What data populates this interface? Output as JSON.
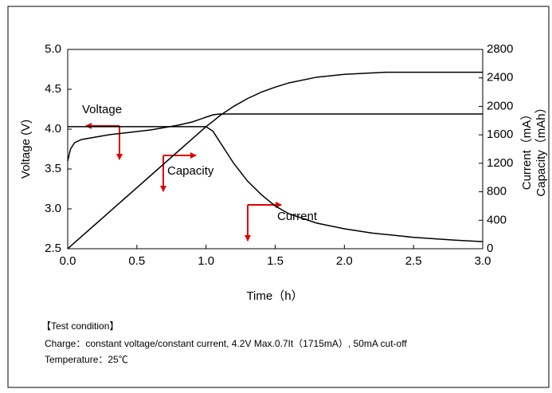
{
  "chart_data": {
    "type": "line",
    "x": [
      0,
      0.02,
      0.05,
      0.1,
      0.2,
      0.3,
      0.4,
      0.5,
      0.6,
      0.7,
      0.8,
      0.9,
      1.0,
      1.05,
      1.1,
      1.2,
      1.3,
      1.4,
      1.5,
      1.6,
      1.8,
      2.0,
      2.2,
      2.3,
      2.5,
      2.8,
      3.0
    ],
    "series": [
      {
        "name": "Voltage",
        "color": "#000000",
        "values": [
          3.6,
          3.75,
          3.83,
          3.87,
          3.9,
          3.93,
          3.95,
          3.97,
          3.99,
          4.02,
          4.05,
          4.09,
          4.15,
          4.18,
          4.19,
          4.19,
          4.19,
          4.19,
          4.19,
          4.19,
          4.19,
          4.19,
          4.19,
          4.19,
          4.19,
          4.19,
          4.19
        ]
      },
      {
        "name": "Capacity",
        "color": "#000000",
        "axis": "y2",
        "values": [
          0,
          34,
          86,
          172,
          343,
          515,
          686,
          858,
          1029,
          1201,
          1372,
          1544,
          1715,
          1790,
          1870,
          2000,
          2110,
          2200,
          2270,
          2330,
          2410,
          2450,
          2470,
          2480,
          2480,
          2480,
          2480
        ]
      },
      {
        "name": "Current",
        "color": "#000000",
        "axis": "y2",
        "values": [
          1715,
          1715,
          1715,
          1715,
          1715,
          1715,
          1715,
          1715,
          1715,
          1715,
          1715,
          1715,
          1715,
          1650,
          1500,
          1200,
          950,
          760,
          600,
          490,
          360,
          280,
          220,
          200,
          160,
          120,
          100
        ]
      }
    ],
    "xlabel": "Time（h）",
    "ylabel": "Voltage (V)",
    "y2labels": [
      "Current（mA）",
      "Capacity（mAh）"
    ],
    "xlim": [
      0,
      3
    ],
    "xticks": [
      {
        "value": 0,
        "label": "0.0"
      },
      0.5,
      {
        "value": 1,
        "label": "1.0"
      },
      1.5,
      {
        "value": 2,
        "label": "2.0"
      },
      2.5,
      {
        "value": 3,
        "label": "3.0"
      }
    ],
    "ylim": [
      2.5,
      5
    ],
    "yticks": [
      2.5,
      {
        "value": 3,
        "label": "3.0"
      },
      3.5,
      {
        "value": 4,
        "label": "4.0"
      },
      4.5,
      {
        "value": 5,
        "label": "5.0"
      }
    ],
    "y2lim": [
      0,
      2800
    ],
    "y2ticks": [
      0,
      400,
      800,
      1200,
      1600,
      2000,
      2400,
      2800
    ],
    "grid": false,
    "annotations": [
      "Voltage",
      "Capacity",
      "Current"
    ],
    "notes": [
      "【Test condition】",
      "Charge：constant voltage/constant current,  4.2V Max.0.7It（1715mA）, 50mA cut-off",
      "Temperature：25℃"
    ]
  }
}
